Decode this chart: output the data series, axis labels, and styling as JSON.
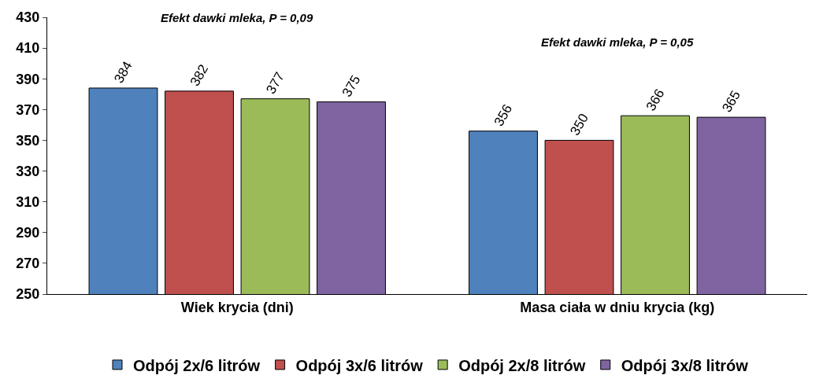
{
  "chart_data": {
    "type": "bar",
    "categories": [
      "Wiek krycia (dni)",
      "Masa ciała w dniu krycia (kg)"
    ],
    "series": [
      {
        "name": "Odpój 2x/6 litrów",
        "color": "#4f81bd",
        "values": [
          384,
          356
        ]
      },
      {
        "name": "Odpój 3x/6 litrów",
        "color": "#c0504d",
        "values": [
          382,
          350
        ]
      },
      {
        "name": "Odpój 2x/8 litrów",
        "color": "#9bbb59",
        "values": [
          377,
          366
        ]
      },
      {
        "name": "Odpój 3x/8 litrów",
        "color": "#8064a2",
        "values": [
          375,
          365
        ]
      }
    ],
    "ylim": [
      250,
      430
    ],
    "yticks": [
      250,
      270,
      290,
      310,
      330,
      350,
      370,
      390,
      410,
      430
    ],
    "annotations": [
      "Efekt dawki mleka, P = 0,09",
      "Efekt dawki mleka, P = 0,05"
    ],
    "data_labels": true,
    "legend": "bottom"
  }
}
